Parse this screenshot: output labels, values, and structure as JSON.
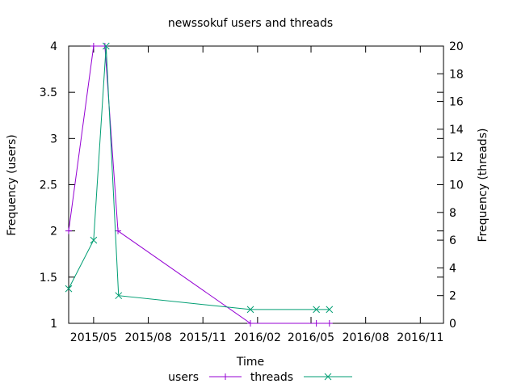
{
  "chart_data": {
    "type": "line",
    "title": "newssokuf users and threads",
    "xlabel": "Time",
    "ylabel": "Frequency (users)",
    "y2label": "Frequency (threads)",
    "x_ticks": [
      "2015/05",
      "2015/08",
      "2015/11",
      "2016/02",
      "2016/05",
      "2016/08",
      "2016/11"
    ],
    "y_ticks": [
      "1",
      "1.5",
      "2",
      "2.5",
      "3",
      "3.5",
      "4"
    ],
    "y2_ticks": [
      "0",
      "2",
      "4",
      "6",
      "8",
      "10",
      "12",
      "14",
      "16",
      "18",
      "20"
    ],
    "xlim": [
      "2015-03-20",
      "2016-12-10"
    ],
    "ylim": [
      1,
      4
    ],
    "y2lim": [
      0,
      20
    ],
    "grid": false,
    "legend_position": "bottom-center",
    "series": [
      {
        "name": "users",
        "axis": "left",
        "color": "#9400d3",
        "marker": "plus",
        "points": [
          {
            "x": "2015-03-20",
            "y": 2
          },
          {
            "x": "2015-05-01",
            "y": 4
          },
          {
            "x": "2015-05-20",
            "y": 4
          },
          {
            "x": "2015-06-11",
            "y": 2
          },
          {
            "x": "2016-01-20",
            "y": 1
          },
          {
            "x": "2016-05-10",
            "y": 1
          },
          {
            "x": "2016-06-01",
            "y": 1
          }
        ]
      },
      {
        "name": "threads",
        "axis": "right",
        "color": "#009e73",
        "marker": "cross",
        "points": [
          {
            "x": "2015-03-20",
            "y": 2.5
          },
          {
            "x": "2015-05-01",
            "y": 6
          },
          {
            "x": "2015-05-22",
            "y": 20
          },
          {
            "x": "2015-06-12",
            "y": 2
          },
          {
            "x": "2016-01-20",
            "y": 1
          },
          {
            "x": "2016-05-10",
            "y": 1
          },
          {
            "x": "2016-06-01",
            "y": 1
          }
        ]
      }
    ]
  }
}
